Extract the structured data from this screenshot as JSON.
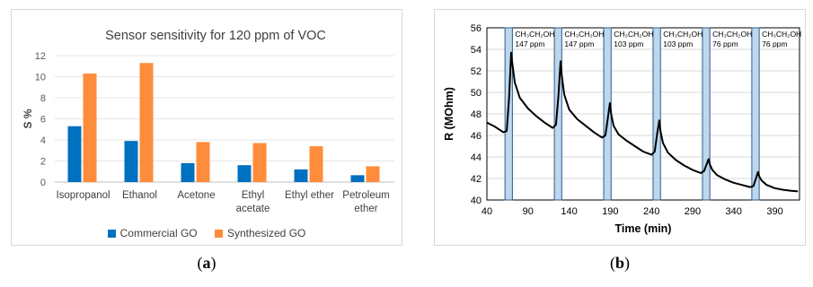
{
  "chart_data": [
    {
      "type": "bar",
      "title": "Sensor sensitivity for 120 ppm of VOC",
      "ylabel": "S %",
      "xlabel": "",
      "ylim": [
        0,
        12
      ],
      "yticks": [
        "0",
        "2",
        "4",
        "6",
        "8",
        "10",
        "12"
      ],
      "grid": true,
      "legend": "bottom",
      "categories": [
        [
          "Isopropanol"
        ],
        [
          "Ethanol"
        ],
        [
          "Acetone"
        ],
        [
          "Ethyl",
          "acetate"
        ],
        [
          "Ethyl ether"
        ],
        [
          "Petroleum",
          "ether"
        ]
      ],
      "series": [
        {
          "name": "Commercial GO",
          "color": "#0070c0",
          "values": [
            5.3,
            3.9,
            1.8,
            1.6,
            1.2,
            0.65
          ]
        },
        {
          "name": "Synthesized GO",
          "color": "#ff8c3a",
          "values": [
            10.3,
            11.3,
            3.8,
            3.7,
            3.4,
            1.5
          ]
        }
      ]
    },
    {
      "type": "line",
      "xlabel": "Time (min)",
      "ylabel": "R (MOhm)",
      "xlim": [
        40,
        420
      ],
      "ylim": [
        40,
        56
      ],
      "xticks": [
        "40",
        "90",
        "140",
        "190",
        "240",
        "290",
        "340",
        "390"
      ],
      "yticks": [
        "40",
        "42",
        "44",
        "46",
        "48",
        "50",
        "52",
        "54",
        "56"
      ],
      "grid": true,
      "line_color": "#000000",
      "exposure_fill": "#bdd7ee",
      "exposures": [
        {
          "start": 62,
          "end": 71,
          "gas": "CH₃CH₂OH",
          "conc": "147 ppm"
        },
        {
          "start": 122,
          "end": 131,
          "gas": "CH₃CH₂OH",
          "conc": "147 ppm"
        },
        {
          "start": 182,
          "end": 191,
          "gas": "CH₃CH₂OH",
          "conc": "103 ppm"
        },
        {
          "start": 242,
          "end": 251,
          "gas": "CH₃CH₂OH",
          "conc": "103 ppm"
        },
        {
          "start": 302,
          "end": 311,
          "gas": "CH₃CH₂OH",
          "conc": "76 ppm"
        },
        {
          "start": 362,
          "end": 371,
          "gas": "CH₃CH₂OH",
          "conc": "76 ppm"
        }
      ],
      "series": [
        {
          "x": [
            40,
            50,
            60,
            64,
            67,
            69.5,
            71,
            74,
            80,
            90,
            100,
            110,
            120,
            124,
            127,
            129.5,
            131,
            134,
            140,
            150,
            160,
            170,
            180,
            184,
            187,
            189.5,
            191,
            194,
            200,
            210,
            220,
            230,
            240,
            244,
            247,
            249.5,
            251,
            254,
            260,
            270,
            280,
            290,
            300,
            304,
            307,
            309.5,
            311,
            314,
            320,
            330,
            340,
            350,
            360,
            364,
            367,
            369.5,
            371,
            374,
            380,
            390,
            400,
            410,
            418
          ],
          "y": [
            47.2,
            46.8,
            46.3,
            46.4,
            49.5,
            53.7,
            52.6,
            50.9,
            49.5,
            48.5,
            47.8,
            47.2,
            46.7,
            47.0,
            49.8,
            52.9,
            51.6,
            49.8,
            48.4,
            47.5,
            46.9,
            46.3,
            45.8,
            46.0,
            47.6,
            49.0,
            48.0,
            46.9,
            46.1,
            45.5,
            45.0,
            44.5,
            44.2,
            44.5,
            46.2,
            47.4,
            46.4,
            45.3,
            44.4,
            43.7,
            43.2,
            42.8,
            42.5,
            42.7,
            43.3,
            43.8,
            43.3,
            42.8,
            42.3,
            41.9,
            41.6,
            41.4,
            41.2,
            41.3,
            42.0,
            42.6,
            42.2,
            41.8,
            41.4,
            41.1,
            40.95,
            40.85,
            40.8
          ]
        }
      ]
    }
  ],
  "captions": {
    "a": "a",
    "b": "b"
  }
}
